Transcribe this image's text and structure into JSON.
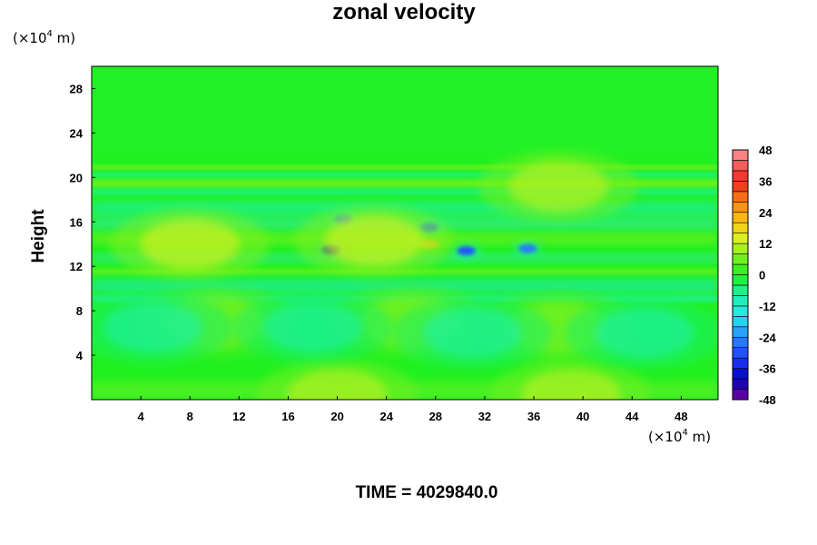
{
  "chart_data": {
    "type": "heatmap",
    "title": "zonal velocity",
    "ylabel": "Height",
    "x_unit": {
      "prefix": "(×10",
      "exp": "4",
      "suffix": " m)"
    },
    "y_unit": {
      "prefix": "(×10",
      "exp": "4",
      "suffix": " m)"
    },
    "xlim": [
      0,
      51
    ],
    "ylim": [
      0,
      30
    ],
    "x_ticks": [
      4,
      8,
      12,
      16,
      20,
      24,
      28,
      32,
      36,
      40,
      44,
      48
    ],
    "y_ticks": [
      4,
      8,
      12,
      16,
      20,
      24,
      28
    ],
    "colorbar": {
      "min": -48,
      "max": 48,
      "step": 4,
      "ticks": [
        48,
        36,
        24,
        12,
        0,
        -12,
        -24,
        -36,
        -48
      ]
    },
    "annotation": "TIME = 4029840.0",
    "features": [
      {
        "x": 19.5,
        "y": 13.5,
        "value": -40
      },
      {
        "x": 20.5,
        "y": 16.2,
        "value": -26
      },
      {
        "x": 27.5,
        "y": 15.5,
        "value": -28
      },
      {
        "x": 30.5,
        "y": 13.4,
        "value": -30
      },
      {
        "x": 35.5,
        "y": 13.6,
        "value": -26
      },
      {
        "x": 27.5,
        "y": 14.0,
        "value": 20
      },
      {
        "x": 23,
        "y": 14.3,
        "value": 14
      },
      {
        "x": 8,
        "y": 14.0,
        "value": 14
      },
      {
        "x": 38,
        "y": 19.2,
        "value": 12
      },
      {
        "x": 20,
        "y": 0.5,
        "value": 12
      },
      {
        "x": 39,
        "y": 0.5,
        "value": 12
      },
      {
        "x": 10,
        "y": 7.0,
        "value": 8
      },
      {
        "x": 38,
        "y": 6.5,
        "value": 8
      },
      {
        "x": 26,
        "y": 7.0,
        "value": 8
      },
      {
        "x": 5,
        "y": 6.5,
        "value": -8
      },
      {
        "x": 18,
        "y": 6.5,
        "value": -8
      },
      {
        "x": 31,
        "y": 6.0,
        "value": -8
      },
      {
        "x": 45,
        "y": 6.0,
        "value": -8
      }
    ]
  }
}
